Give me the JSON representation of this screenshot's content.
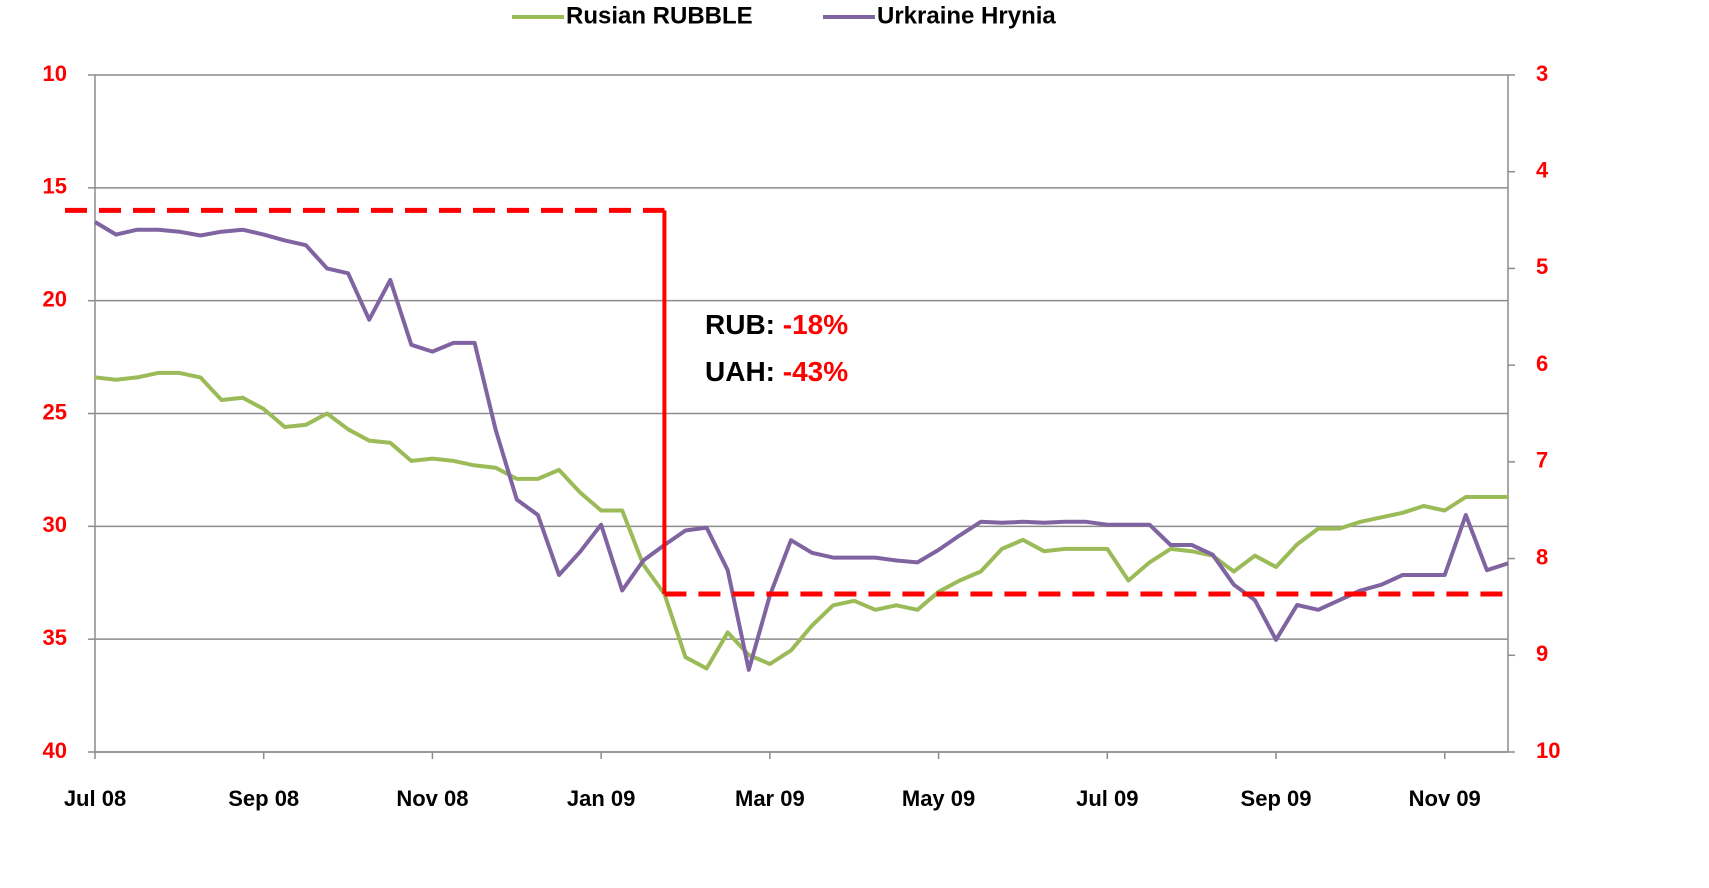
{
  "chart_data": {
    "type": "line",
    "categories": [
      "Jul 08",
      null,
      null,
      null,
      null,
      null,
      null,
      null,
      "Sep 08",
      null,
      null,
      null,
      null,
      null,
      null,
      null,
      "Nov 08",
      null,
      null,
      null,
      null,
      null,
      null,
      null,
      "Jan 09",
      null,
      null,
      null,
      null,
      null,
      null,
      null,
      "Mar 09",
      null,
      null,
      null,
      null,
      null,
      null,
      null,
      "May 09",
      null,
      null,
      null,
      null,
      null,
      null,
      null,
      "Jul 09",
      null,
      null,
      null,
      null,
      null,
      null,
      null,
      "Sep 09",
      null,
      null,
      null,
      null,
      null,
      null,
      null,
      "Nov 09",
      null,
      null,
      null
    ],
    "series": [
      {
        "name": "Rusian RUBBLE",
        "color": "#9bbb59",
        "values": [
          23.4,
          23.5,
          23.4,
          23.2,
          23.2,
          23.4,
          24.4,
          24.3,
          24.8,
          25.6,
          25.5,
          25.0,
          25.7,
          26.2,
          26.3,
          27.1,
          27.0,
          27.1,
          27.3,
          27.4,
          27.9,
          27.9,
          27.5,
          28.5,
          29.3,
          29.3,
          31.7,
          33.0,
          35.8,
          36.3,
          34.7,
          35.7,
          36.1,
          35.5,
          34.4,
          33.5,
          33.3,
          33.7,
          33.5,
          33.7,
          32.9,
          32.4,
          32.0,
          31.0,
          30.6,
          31.1,
          31.0,
          31.0,
          31.0,
          32.4,
          31.6,
          31.0,
          31.1,
          31.3,
          32.0,
          31.3,
          31.8,
          30.8,
          30.1,
          30.1,
          29.8,
          29.6,
          29.4,
          29.1,
          29.3,
          28.7,
          28.7,
          28.7
        ]
      },
      {
        "name": "Urkraine Hrynia",
        "color": "#8064a2",
        "axis": "y2",
        "values": [
          4.52,
          4.65,
          4.6,
          4.6,
          4.62,
          4.66,
          4.62,
          4.6,
          4.65,
          4.71,
          4.76,
          5.0,
          5.05,
          5.53,
          5.12,
          5.79,
          5.86,
          5.77,
          5.77,
          6.67,
          7.39,
          7.55,
          8.17,
          7.93,
          7.65,
          8.33,
          8.02,
          7.86,
          7.71,
          7.68,
          8.12,
          9.15,
          8.38,
          7.81,
          7.94,
          7.99,
          7.99,
          7.99,
          8.02,
          8.04,
          7.91,
          7.76,
          7.62,
          7.63,
          7.62,
          7.63,
          7.62,
          7.62,
          7.65,
          7.65,
          7.65,
          7.86,
          7.86,
          7.96,
          8.27,
          8.43,
          8.84,
          8.48,
          8.53,
          8.43,
          8.33,
          8.27,
          8.17,
          8.17,
          8.17,
          7.55,
          8.12,
          8.05
        ]
      }
    ],
    "ylim": [
      10,
      40
    ],
    "yticks": [
      10,
      15,
      20,
      25,
      30,
      35,
      40
    ],
    "y2lim": [
      3,
      10
    ],
    "y2ticks": [
      3,
      4,
      5,
      6,
      7,
      8,
      9,
      10
    ],
    "y_reversed": true,
    "grid": true,
    "legend": "top",
    "reference_lines": [
      {
        "value": 16,
        "until": 27
      },
      {
        "value": 33,
        "from": 27
      }
    ],
    "reference_color": "#ff0000",
    "annotations": [
      {
        "label": "RUB:",
        "value": "-18%"
      },
      {
        "label": "UAH:",
        "value": "-43%"
      }
    ]
  }
}
